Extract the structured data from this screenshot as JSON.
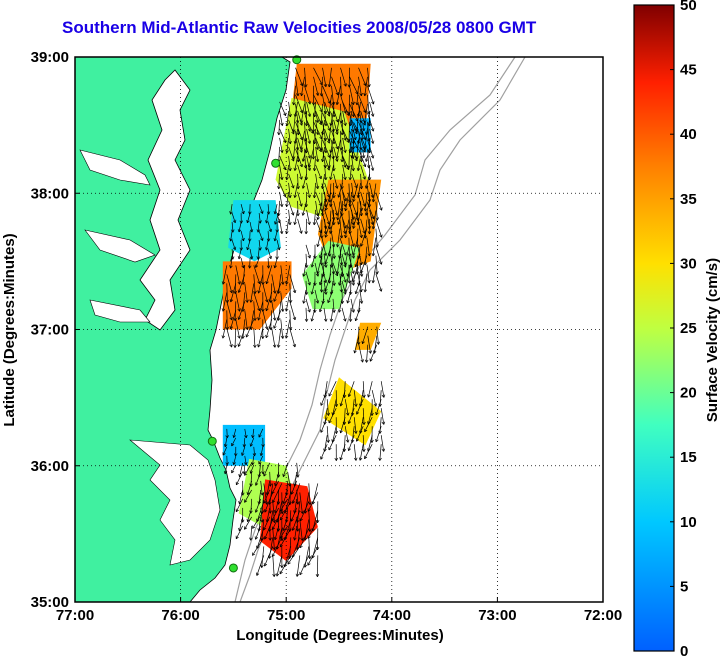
{
  "chart_data": {
    "type": "heatmap",
    "title": "Southern Mid-Atlantic Raw Velocities 2008/05/28 0800 GMT",
    "xlabel": "Longitude (Degrees:Minutes)",
    "ylabel": "Latitude (Degrees:Minutes)",
    "colorbar_label": "Surface Velocity (cm/s)",
    "x_ticks": [
      "77:00",
      "76:00",
      "75:00",
      "74:00",
      "73:00",
      "72:00"
    ],
    "y_ticks": [
      "39:00",
      "38:00",
      "37:00",
      "36:00",
      "35:00"
    ],
    "colorbar_ticks": [
      "0",
      "5",
      "10",
      "15",
      "20",
      "25",
      "30",
      "35",
      "40",
      "45",
      "50"
    ],
    "xlim": [
      -77,
      -72
    ],
    "ylim": [
      35,
      39
    ],
    "clim": [
      0,
      50
    ],
    "grid": true,
    "stations": [
      {
        "lon": -74.9,
        "lat": 38.98
      },
      {
        "lon": -75.1,
        "lat": 38.22
      },
      {
        "lon": -75.7,
        "lat": 36.18
      },
      {
        "lon": -75.5,
        "lat": 35.25
      }
    ],
    "regions": [
      {
        "polygon": [
          [
            -74.9,
            38.95
          ],
          [
            -74.2,
            38.95
          ],
          [
            -74.25,
            38.4
          ],
          [
            -74.6,
            38.3
          ],
          [
            -74.95,
            38.6
          ]
        ],
        "value": 38
      },
      {
        "polygon": [
          [
            -74.95,
            38.7
          ],
          [
            -74.45,
            38.6
          ],
          [
            -74.2,
            38.05
          ],
          [
            -74.55,
            37.8
          ],
          [
            -74.95,
            37.9
          ],
          [
            -75.1,
            38.1
          ]
        ],
        "value": 26
      },
      {
        "polygon": [
          [
            -74.6,
            38.1
          ],
          [
            -74.1,
            38.1
          ],
          [
            -74.2,
            37.5
          ],
          [
            -74.55,
            37.4
          ],
          [
            -74.7,
            37.7
          ]
        ],
        "value": 36
      },
      {
        "polygon": [
          [
            -74.6,
            37.65
          ],
          [
            -74.3,
            37.6
          ],
          [
            -74.5,
            37.15
          ],
          [
            -74.75,
            37.15
          ],
          [
            -74.85,
            37.4
          ]
        ],
        "value": 22
      },
      {
        "polygon": [
          [
            -75.5,
            37.95
          ],
          [
            -75.1,
            37.95
          ],
          [
            -75.05,
            37.6
          ],
          [
            -75.3,
            37.5
          ],
          [
            -75.55,
            37.6
          ]
        ],
        "value": 12
      },
      {
        "polygon": [
          [
            -75.6,
            37.5
          ],
          [
            -74.95,
            37.5
          ],
          [
            -74.95,
            37.3
          ],
          [
            -75.25,
            37.0
          ],
          [
            -75.6,
            37.0
          ],
          [
            -75.6,
            37.1
          ]
        ],
        "value": 38
      },
      {
        "polygon": [
          [
            -74.4,
            38.55
          ],
          [
            -74.2,
            38.55
          ],
          [
            -74.2,
            38.3
          ],
          [
            -74.4,
            38.3
          ]
        ],
        "value": 8
      },
      {
        "polygon": [
          [
            -74.3,
            37.05
          ],
          [
            -74.1,
            37.05
          ],
          [
            -74.2,
            36.85
          ],
          [
            -74.35,
            36.85
          ]
        ],
        "value": 34
      },
      {
        "polygon": [
          [
            -74.5,
            36.65
          ],
          [
            -74.1,
            36.4
          ],
          [
            -74.25,
            36.15
          ],
          [
            -74.65,
            36.35
          ]
        ],
        "value": 30
      },
      {
        "polygon": [
          [
            -75.6,
            36.3
          ],
          [
            -75.2,
            36.3
          ],
          [
            -75.2,
            36.0
          ],
          [
            -75.6,
            36.0
          ]
        ],
        "value": 9
      },
      {
        "polygon": [
          [
            -75.35,
            36.05
          ],
          [
            -75.0,
            36.0
          ],
          [
            -74.9,
            35.7
          ],
          [
            -75.1,
            35.5
          ],
          [
            -75.45,
            35.65
          ]
        ],
        "value": 24
      },
      {
        "polygon": [
          [
            -75.2,
            35.9
          ],
          [
            -74.8,
            35.85
          ],
          [
            -74.7,
            35.55
          ],
          [
            -75.0,
            35.3
          ],
          [
            -75.25,
            35.45
          ]
        ],
        "value": 44
      }
    ]
  }
}
